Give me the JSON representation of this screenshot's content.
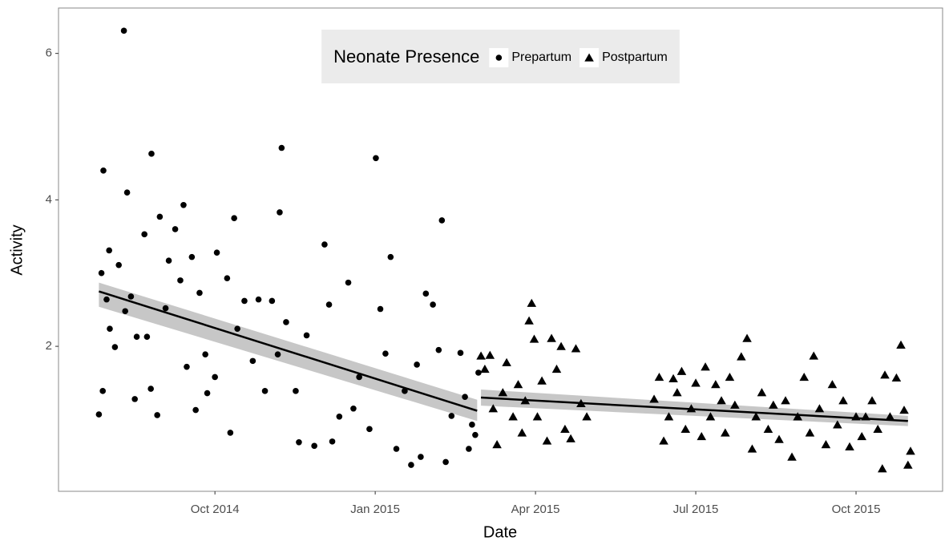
{
  "chart_data": {
    "type": "scatter",
    "x_label": "Date",
    "y_label": "Activity",
    "legend_title": "Neonate Presence",
    "legend_position": "top",
    "grid": false,
    "xlim": [
      2014.506,
      2015.885
    ],
    "ylim": [
      0.02,
      6.62
    ],
    "xticks": [
      {
        "value": 2014.75,
        "label": "Oct 2014"
      },
      {
        "value": 2015.0,
        "label": "Jan 2015"
      },
      {
        "value": 2015.25,
        "label": "Apr 2015"
      },
      {
        "value": 2015.5,
        "label": "Jul 2015"
      },
      {
        "value": 2015.75,
        "label": "Oct 2015"
      }
    ],
    "yticks": [
      2,
      4,
      6
    ],
    "series": [
      {
        "name": "Prepartum",
        "marker": "circle",
        "color": "#000000",
        "x": [
          2014.569,
          2014.575,
          2014.576,
          2014.573,
          2014.581,
          2014.585,
          2014.586,
          2014.594,
          2014.6,
          2014.608,
          2014.613,
          2014.61,
          2014.619,
          2014.625,
          2014.628,
          2014.64,
          2014.644,
          2014.651,
          2014.65,
          2014.66,
          2014.664,
          2014.673,
          2014.678,
          2014.688,
          2014.696,
          2014.701,
          2014.706,
          2014.714,
          2014.72,
          2014.726,
          2014.735,
          2014.738,
          2014.75,
          2014.753,
          2014.769,
          2014.774,
          2014.78,
          2014.785,
          2014.796,
          2014.809,
          2014.818,
          2014.828,
          2014.839,
          2014.848,
          2014.854,
          2014.851,
          2014.861,
          2014.876,
          2014.881,
          2014.893,
          2014.905,
          2014.921,
          2014.928,
          2014.933,
          2014.944,
          2014.958,
          2014.966,
          2014.975,
          2014.991,
          2015.001,
          2015.008,
          2015.016,
          2015.024,
          2015.033,
          2015.046,
          2015.056,
          2015.065,
          2015.071,
          2015.079,
          2015.09,
          2015.099,
          2015.104,
          2015.11,
          2015.119,
          2015.133,
          2015.14,
          2015.146,
          2015.151,
          2015.156,
          2015.161
        ],
        "values": [
          1.07,
          1.39,
          4.4,
          3.0,
          2.64,
          3.31,
          2.24,
          1.99,
          3.11,
          6.31,
          4.1,
          2.48,
          2.68,
          1.28,
          2.13,
          3.53,
          2.13,
          4.63,
          1.42,
          1.06,
          3.77,
          2.52,
          3.17,
          3.6,
          2.9,
          3.93,
          1.72,
          3.22,
          1.13,
          2.73,
          1.89,
          1.36,
          1.58,
          3.28,
          2.93,
          0.82,
          3.75,
          2.24,
          2.62,
          1.8,
          2.64,
          1.39,
          2.62,
          1.89,
          4.71,
          3.83,
          2.33,
          1.39,
          0.69,
          2.15,
          0.64,
          3.39,
          2.57,
          0.7,
          1.04,
          2.87,
          1.15,
          1.58,
          0.87,
          4.57,
          2.51,
          1.9,
          3.22,
          0.6,
          1.39,
          0.38,
          1.75,
          0.49,
          2.72,
          2.57,
          1.95,
          3.72,
          0.42,
          1.05,
          1.91,
          1.31,
          0.6,
          0.93,
          0.79,
          1.64
        ]
      },
      {
        "name": "Postpartum",
        "marker": "triangle",
        "color": "#000000",
        "x": [
          2015.165,
          2015.171,
          2015.179,
          2015.184,
          2015.19,
          2015.199,
          2015.205,
          2015.215,
          2015.223,
          2015.229,
          2015.234,
          2015.24,
          2015.244,
          2015.248,
          2015.253,
          2015.26,
          2015.268,
          2015.275,
          2015.283,
          2015.29,
          2015.296,
          2015.305,
          2015.313,
          2015.321,
          2015.33,
          2015.435,
          2015.443,
          2015.45,
          2015.458,
          2015.465,
          2015.471,
          2015.478,
          2015.484,
          2015.493,
          2015.5,
          2015.509,
          2015.515,
          2015.523,
          2015.531,
          2015.54,
          2015.546,
          2015.553,
          2015.561,
          2015.571,
          2015.58,
          2015.588,
          2015.594,
          2015.603,
          2015.613,
          2015.621,
          2015.63,
          2015.64,
          2015.65,
          2015.659,
          2015.669,
          2015.678,
          2015.684,
          2015.693,
          2015.703,
          2015.713,
          2015.721,
          2015.73,
          2015.74,
          2015.75,
          2015.759,
          2015.765,
          2015.775,
          2015.784,
          2015.791,
          2015.795,
          2015.803,
          2015.813,
          2015.82,
          2015.825,
          2015.831,
          2015.835
        ],
        "values": [
          1.87,
          1.69,
          1.88,
          1.15,
          0.66,
          1.37,
          1.78,
          1.04,
          1.48,
          0.82,
          1.26,
          2.35,
          2.59,
          2.1,
          1.04,
          1.53,
          0.71,
          2.11,
          1.69,
          2.0,
          0.87,
          0.74,
          1.97,
          1.22,
          1.04,
          1.28,
          1.58,
          0.71,
          1.04,
          1.56,
          1.37,
          1.66,
          0.87,
          1.15,
          1.5,
          0.77,
          1.72,
          1.04,
          1.48,
          1.26,
          0.82,
          1.58,
          1.2,
          1.86,
          2.11,
          0.6,
          1.04,
          1.37,
          0.87,
          1.2,
          0.73,
          1.26,
          0.49,
          1.04,
          1.58,
          0.82,
          1.87,
          1.15,
          0.66,
          1.48,
          0.93,
          1.26,
          0.63,
          1.04,
          0.77,
          1.04,
          1.26,
          0.87,
          0.33,
          1.61,
          1.04,
          1.57,
          2.02,
          1.13,
          0.38,
          0.57
        ]
      }
    ],
    "trend_lines": [
      {
        "x": [
          2014.569,
          2015.159
        ],
        "values": [
          2.75,
          1.12
        ],
        "lower": [
          2.54,
          0.98
        ],
        "upper": [
          2.87,
          1.27
        ]
      },
      {
        "x": [
          2015.165,
          2015.831
        ],
        "values": [
          1.3,
          0.98
        ],
        "lower": [
          1.19,
          0.91
        ],
        "upper": [
          1.41,
          1.05
        ]
      }
    ]
  }
}
